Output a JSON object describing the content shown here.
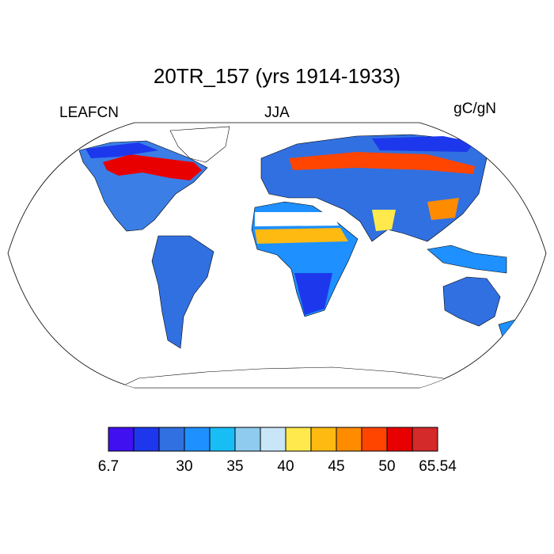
{
  "header": {
    "title": "20TR_157 (yrs 1914-1933)",
    "left": "LEAFCN",
    "center": "JJA",
    "right": "gC/gN"
  },
  "colorbar": {
    "colors": [
      "#4010f0",
      "#1d38ec",
      "#3170e0",
      "#1e90ff",
      "#18bdf5",
      "#8ecbef",
      "#c8e6f8",
      "#ffe94d",
      "#ffba12",
      "#ff8c00",
      "#ff4500",
      "#e80000",
      "#d42a2a"
    ],
    "labels": [
      6.7,
      null,
      null,
      30,
      null,
      35,
      null,
      40,
      null,
      45,
      null,
      50,
      null,
      65.54
    ]
  }
}
